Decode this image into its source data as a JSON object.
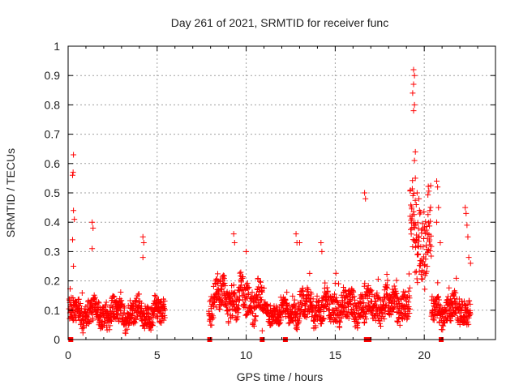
{
  "chart_data": {
    "type": "scatter",
    "title": "Day 261 of 2021, SRMTID for receiver func",
    "xlabel": "GPS time / hours",
    "ylabel": "SRMTID / TECUs",
    "xlim": [
      0,
      24
    ],
    "ylim": [
      0,
      1
    ],
    "xticks": [
      "0",
      "5",
      "10",
      "15",
      "20"
    ],
    "yticks": [
      "0",
      "0.1",
      "0.2",
      "0.3",
      "0.4",
      "0.5",
      "0.6",
      "0.7",
      "0.8",
      "0.9",
      "1"
    ],
    "grid": true,
    "marker": "plus",
    "color": "#ff0000",
    "series": [
      {
        "name": "SRMTID",
        "segments": [
          {
            "start": 0.05,
            "end": 5.45,
            "base": 0.09,
            "amp": 0.05
          },
          {
            "start": 7.9,
            "end": 10.9,
            "base": 0.14,
            "amp": 0.07
          },
          {
            "start": 10.9,
            "end": 12.6,
            "base": 0.09,
            "amp": 0.04
          },
          {
            "start": 12.6,
            "end": 17.0,
            "base": 0.11,
            "amp": 0.06
          },
          {
            "start": 17.0,
            "end": 19.2,
            "base": 0.12,
            "amp": 0.06
          },
          {
            "start": 19.2,
            "end": 20.4,
            "base": 0.35,
            "amp": 0.15
          },
          {
            "start": 20.4,
            "end": 22.6,
            "base": 0.1,
            "amp": 0.05
          }
        ],
        "outliers": [
          [
            0.3,
            0.63
          ],
          [
            0.25,
            0.56
          ],
          [
            0.28,
            0.57
          ],
          [
            0.3,
            0.44
          ],
          [
            0.35,
            0.41
          ],
          [
            0.25,
            0.34
          ],
          [
            0.3,
            0.25
          ],
          [
            1.35,
            0.4
          ],
          [
            1.4,
            0.38
          ],
          [
            1.35,
            0.31
          ],
          [
            4.2,
            0.35
          ],
          [
            4.25,
            0.33
          ],
          [
            4.2,
            0.28
          ],
          [
            9.3,
            0.36
          ],
          [
            9.35,
            0.33
          ],
          [
            10.0,
            0.3
          ],
          [
            10.9,
            0.03
          ],
          [
            12.8,
            0.36
          ],
          [
            12.85,
            0.33
          ],
          [
            13.0,
            0.33
          ],
          [
            14.2,
            0.33
          ],
          [
            14.25,
            0.3
          ],
          [
            16.65,
            0.5
          ],
          [
            16.7,
            0.48
          ],
          [
            19.4,
            0.92
          ],
          [
            19.45,
            0.9
          ],
          [
            19.4,
            0.87
          ],
          [
            19.35,
            0.84
          ],
          [
            19.45,
            0.8
          ],
          [
            19.4,
            0.78
          ],
          [
            19.5,
            0.64
          ],
          [
            19.45,
            0.61
          ],
          [
            19.5,
            0.55
          ],
          [
            19.6,
            0.5
          ],
          [
            19.55,
            0.46
          ],
          [
            19.7,
            0.48
          ],
          [
            19.3,
            0.38
          ],
          [
            20.7,
            0.54
          ],
          [
            20.75,
            0.52
          ],
          [
            20.8,
            0.45
          ],
          [
            20.7,
            0.4
          ],
          [
            20.9,
            0.33
          ],
          [
            22.3,
            0.45
          ],
          [
            22.35,
            0.43
          ],
          [
            22.4,
            0.39
          ],
          [
            22.45,
            0.35
          ],
          [
            22.5,
            0.28
          ],
          [
            22.6,
            0.26
          ]
        ],
        "zeros": [
          0.15,
          7.95,
          10.9,
          12.2,
          16.75,
          16.9,
          20.95
        ]
      }
    ]
  }
}
